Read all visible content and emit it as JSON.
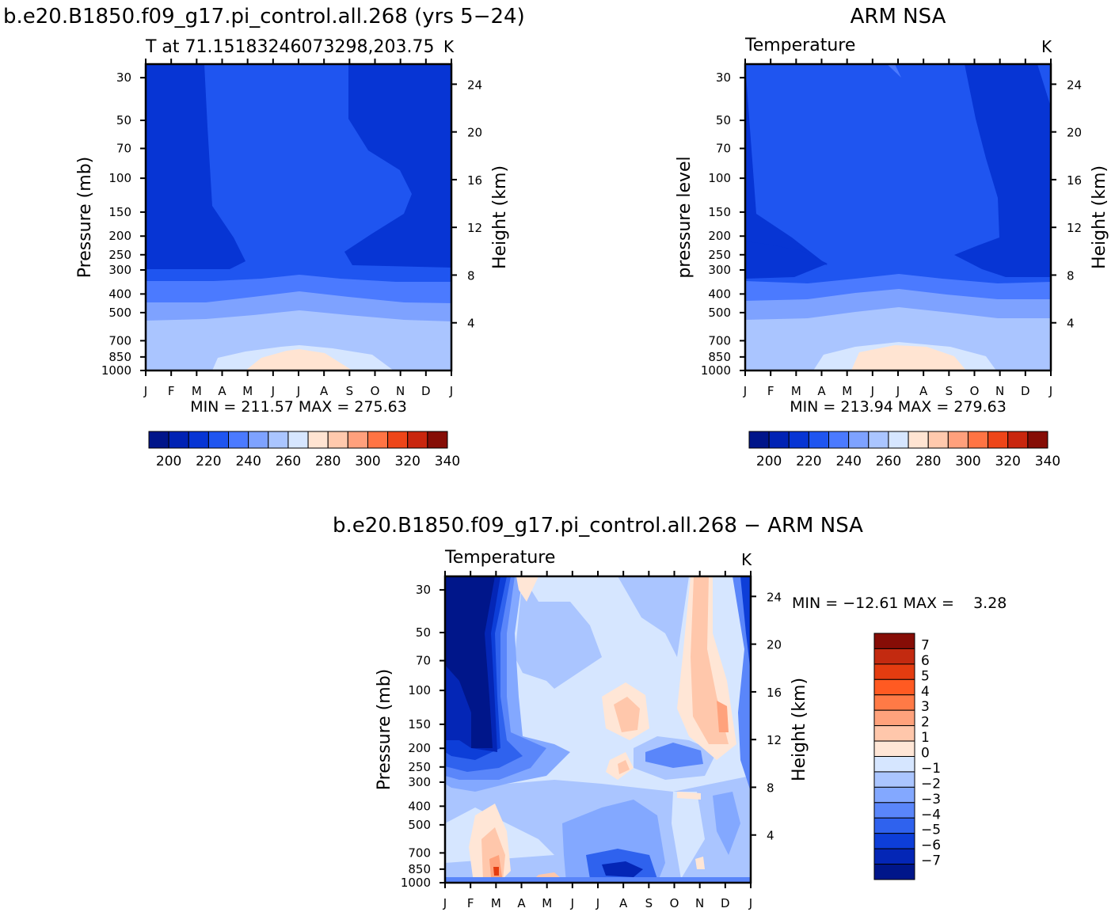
{
  "titles": {
    "left_main": "b.e20.B1850.f09_g17.pi_control.all.268 (yrs 5−24)",
    "left_sub": "T at 71.15183246073298,203.75",
    "left_units": "K",
    "right_main": "ARM NSA",
    "right_sub": "Temperature",
    "right_units": "K",
    "bottom_main": "b.e20.B1850.f09_g17.pi_control.all.268 − ARM NSA",
    "bottom_sub": "Temperature",
    "bottom_units": "K"
  },
  "axes": {
    "pressure_label": "Pressure (mb)",
    "pressure_label_obs": "pressure level",
    "height_label": "Height (km)",
    "pressure_ticks": [
      "30",
      "50",
      "70",
      "100",
      "150",
      "200",
      "250",
      "300",
      "400",
      "500",
      "700",
      "850",
      "1000"
    ],
    "height_ticks": [
      "24",
      "20",
      "16",
      "12",
      "8",
      "4"
    ],
    "month_ticks": [
      "J",
      "F",
      "M",
      "A",
      "M",
      "J",
      "J",
      "A",
      "S",
      "O",
      "N",
      "D",
      "J"
    ]
  },
  "stats": {
    "left": "MIN = 211.57 MAX = 275.63",
    "right": "MIN = 213.94 MAX = 279.63",
    "bottom": "MIN = −12.61 MAX =    3.28"
  },
  "colorbar_temp": {
    "labels": [
      "200",
      "220",
      "240",
      "260",
      "280",
      "300",
      "320",
      "340"
    ],
    "colors": [
      "#00158a",
      "#0022b4",
      "#0735d4",
      "#1f55f0",
      "#4b7aff",
      "#7ea2ff",
      "#aac5ff",
      "#d6e6ff",
      "#ffe4d2",
      "#ffc9ad",
      "#ffa07c",
      "#ff7444",
      "#ee4518",
      "#c9260e",
      "#860d06"
    ]
  },
  "colorbar_diff": {
    "labels": [
      "7",
      "6",
      "5",
      "4",
      "3",
      "2",
      "1",
      "0",
      "−1",
      "−2",
      "−3",
      "−4",
      "−5",
      "−6",
      "−7"
    ],
    "colors": [
      "#860d06",
      "#c32a10",
      "#e43c10",
      "#ff5a22",
      "#ff7a46",
      "#ffa27c",
      "#ffc7ab",
      "#ffe6d6",
      "#d6e6ff",
      "#aac5ff",
      "#83a8ff",
      "#5a86fa",
      "#2f62ee",
      "#0d3ed8",
      "#0426b6",
      "#00168a"
    ]
  },
  "chart_data": [
    {
      "type": "heatmap",
      "title": "b.e20.B1850.f09_g17.pi_control.all.268 (yrs 5−24)",
      "subtitle": "T at 71.15183246073298,203.75",
      "units": "K",
      "x": [
        "J",
        "F",
        "M",
        "A",
        "M",
        "J",
        "J",
        "A",
        "S",
        "O",
        "N",
        "D",
        "J"
      ],
      "y_pressure": [
        30,
        50,
        70,
        100,
        150,
        200,
        250,
        300,
        400,
        500,
        700,
        850,
        1000
      ],
      "ylabel": "Pressure (mb)",
      "y2label": "Height (km)",
      "min": 211.57,
      "max": 275.63,
      "levels": [
        200,
        205,
        210,
        215,
        220,
        225,
        230,
        235,
        240,
        245,
        250,
        255,
        260,
        265,
        270,
        275,
        280
      ]
    },
    {
      "type": "heatmap",
      "title": "ARM NSA",
      "subtitle": "Temperature",
      "units": "K",
      "x": [
        "J",
        "F",
        "M",
        "A",
        "M",
        "J",
        "J",
        "A",
        "S",
        "O",
        "N",
        "D",
        "J"
      ],
      "y_pressure": [
        30,
        50,
        70,
        100,
        150,
        200,
        250,
        300,
        400,
        500,
        700,
        850,
        1000
      ],
      "ylabel": "pressure level",
      "y2label": "Height (km)",
      "min": 213.94,
      "max": 279.63
    },
    {
      "type": "heatmap",
      "title": "b.e20.B1850.f09_g17.pi_control.all.268 − ARM NSA",
      "subtitle": "Temperature",
      "units": "K",
      "x": [
        "J",
        "F",
        "M",
        "A",
        "M",
        "J",
        "J",
        "A",
        "S",
        "O",
        "N",
        "D",
        "J"
      ],
      "y_pressure": [
        30,
        50,
        70,
        100,
        150,
        200,
        250,
        300,
        400,
        500,
        700,
        850,
        1000
      ],
      "ylabel": "Pressure (mb)",
      "y2label": "Height (km)",
      "min": -12.61,
      "max": 3.28,
      "levels": [
        -7,
        -6,
        -5,
        -4,
        -3,
        -2,
        -1,
        0,
        1,
        2,
        3,
        4,
        5,
        6,
        7
      ]
    }
  ]
}
